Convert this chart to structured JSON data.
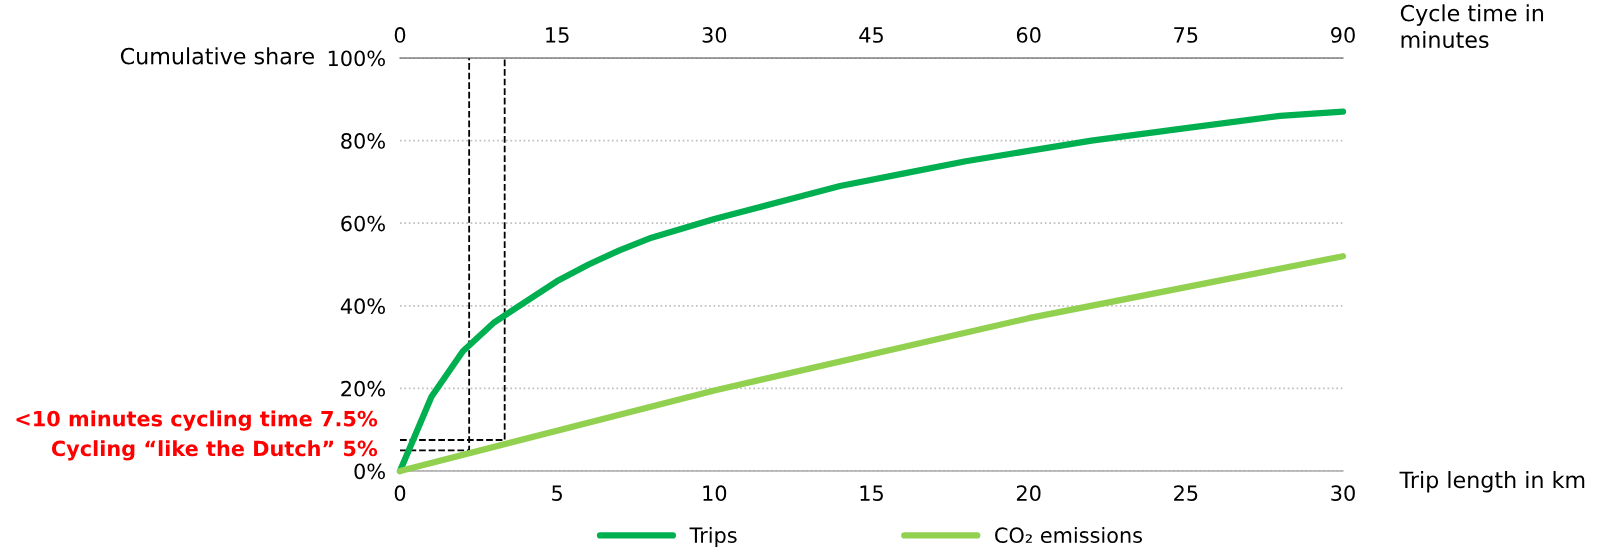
{
  "chart_data": {
    "type": "line",
    "xlabel": "Trip length in km",
    "ylabel": "Cumulative share",
    "x2label": "Cycle time in\nminutes",
    "xlim": [
      0,
      30
    ],
    "xticks": [
      0,
      5,
      10,
      15,
      20,
      25,
      30
    ],
    "x2lim": [
      0,
      90
    ],
    "x2ticks": [
      0,
      15,
      30,
      45,
      60,
      75,
      90
    ],
    "ylim": [
      0,
      100
    ],
    "yticks": [
      {
        "value": 0,
        "label": "0%"
      },
      {
        "value": 20,
        "label": "20%"
      },
      {
        "value": 40,
        "label": "40%"
      },
      {
        "value": 60,
        "label": "60%"
      },
      {
        "value": 80,
        "label": "80%"
      },
      {
        "value": 100,
        "label": "100%"
      }
    ],
    "grid": "y",
    "legend": "bottom",
    "marker": "none",
    "series": [
      {
        "name": "Trips",
        "color": "#00b050",
        "x": [
          0,
          1,
          2,
          3,
          4,
          5,
          6,
          7,
          8,
          10,
          12,
          14,
          16,
          18,
          20,
          22,
          25,
          28,
          30
        ],
        "values": [
          0,
          18,
          29,
          36,
          41,
          46,
          50,
          53.5,
          56.5,
          61,
          65,
          69,
          72,
          75,
          77.5,
          80,
          83,
          86,
          87
        ]
      },
      {
        "name": "CO₂ emissions",
        "color": "#92d050",
        "x": [
          0,
          10,
          20,
          30
        ],
        "values": [
          0,
          19.5,
          37,
          52
        ]
      },
      {
        "color": "#000000",
        "line_style": "dashed",
        "x": [
          0,
          3.33,
          3.33
        ],
        "values": [
          7.5,
          7.5,
          100
        ]
      },
      {
        "color": "#000000",
        "line_style": "dashed",
        "x": [
          0,
          2.2,
          2.2
        ],
        "values": [
          5,
          5,
          100
        ]
      }
    ],
    "annotations": [
      {
        "text": "<10 minutes cycling time 7.5%",
        "x": 0,
        "y": 7.5
      },
      {
        "text": "Cycling “like the Dutch” 5%",
        "x": 0,
        "y": 5
      }
    ]
  }
}
